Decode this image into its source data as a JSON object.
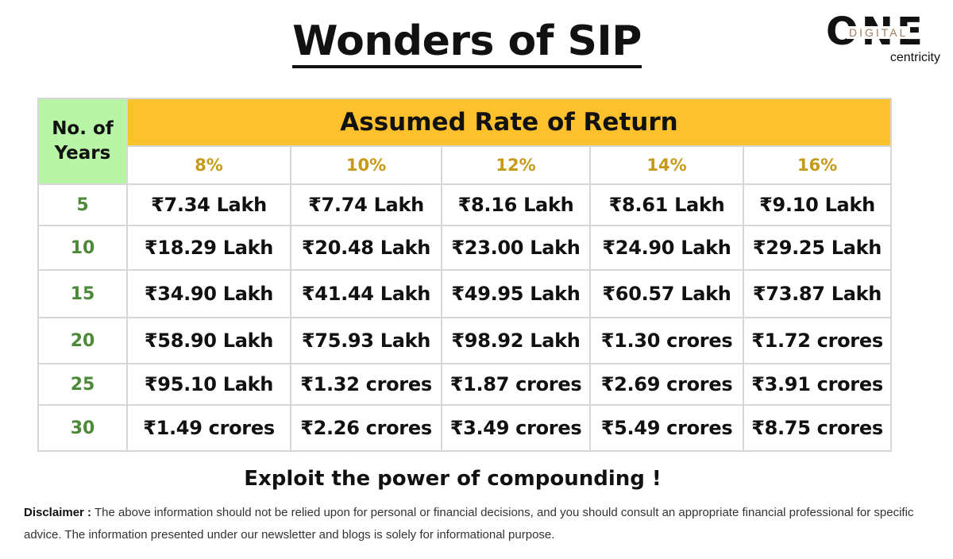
{
  "title": "Wonders of SIP",
  "logo": {
    "main": "ONE",
    "overlay": "DIGITAL",
    "sub": "centricity"
  },
  "table": {
    "years_header": "No. of Years",
    "rate_header": "Assumed Rate of Return",
    "rates": [
      "8%",
      "10%",
      "12%",
      "14%",
      "16%"
    ],
    "rows": [
      {
        "years": "5",
        "values": [
          "₹7.34 Lakh",
          "₹7.74 Lakh",
          "₹8.16 Lakh",
          "₹8.61 Lakh",
          "₹9.10 Lakh"
        ]
      },
      {
        "years": "10",
        "values": [
          "₹18.29 Lakh",
          "₹20.48 Lakh",
          "₹23.00 Lakh",
          "₹24.90 Lakh",
          "₹29.25 Lakh"
        ]
      },
      {
        "years": "15",
        "values": [
          "₹34.90 Lakh",
          "₹41.44 Lakh",
          "₹49.95 Lakh",
          "₹60.57 Lakh",
          "₹73.87 Lakh"
        ]
      },
      {
        "years": "20",
        "values": [
          "₹58.90 Lakh",
          "₹75.93 Lakh",
          "₹98.92 Lakh",
          "₹1.30 crores",
          "₹1.72 crores"
        ]
      },
      {
        "years": "25",
        "values": [
          "₹95.10 Lakh",
          "₹1.32 crores",
          "₹1.87 crores",
          "₹2.69 crores",
          "₹3.91 crores"
        ]
      },
      {
        "years": "30",
        "values": [
          "₹1.49 crores",
          "₹2.26 crores",
          "₹3.49 crores",
          "₹5.49 crores",
          "₹8.75 crores"
        ]
      }
    ]
  },
  "tagline": "Exploit the power of compounding !",
  "disclaimer": {
    "label": "Disclaimer :",
    "text": "The above information should not be relied upon for personal or financial decisions, and you should consult an appropriate financial professional for specific advice. The information presented under our newsletter and blogs is solely for informational purpose."
  },
  "colors": {
    "years_header_bg": "#b8f5a6",
    "rate_header_bg": "#fcc12c",
    "rate_text": "#c69a16",
    "year_text": "#4c8a3a"
  }
}
